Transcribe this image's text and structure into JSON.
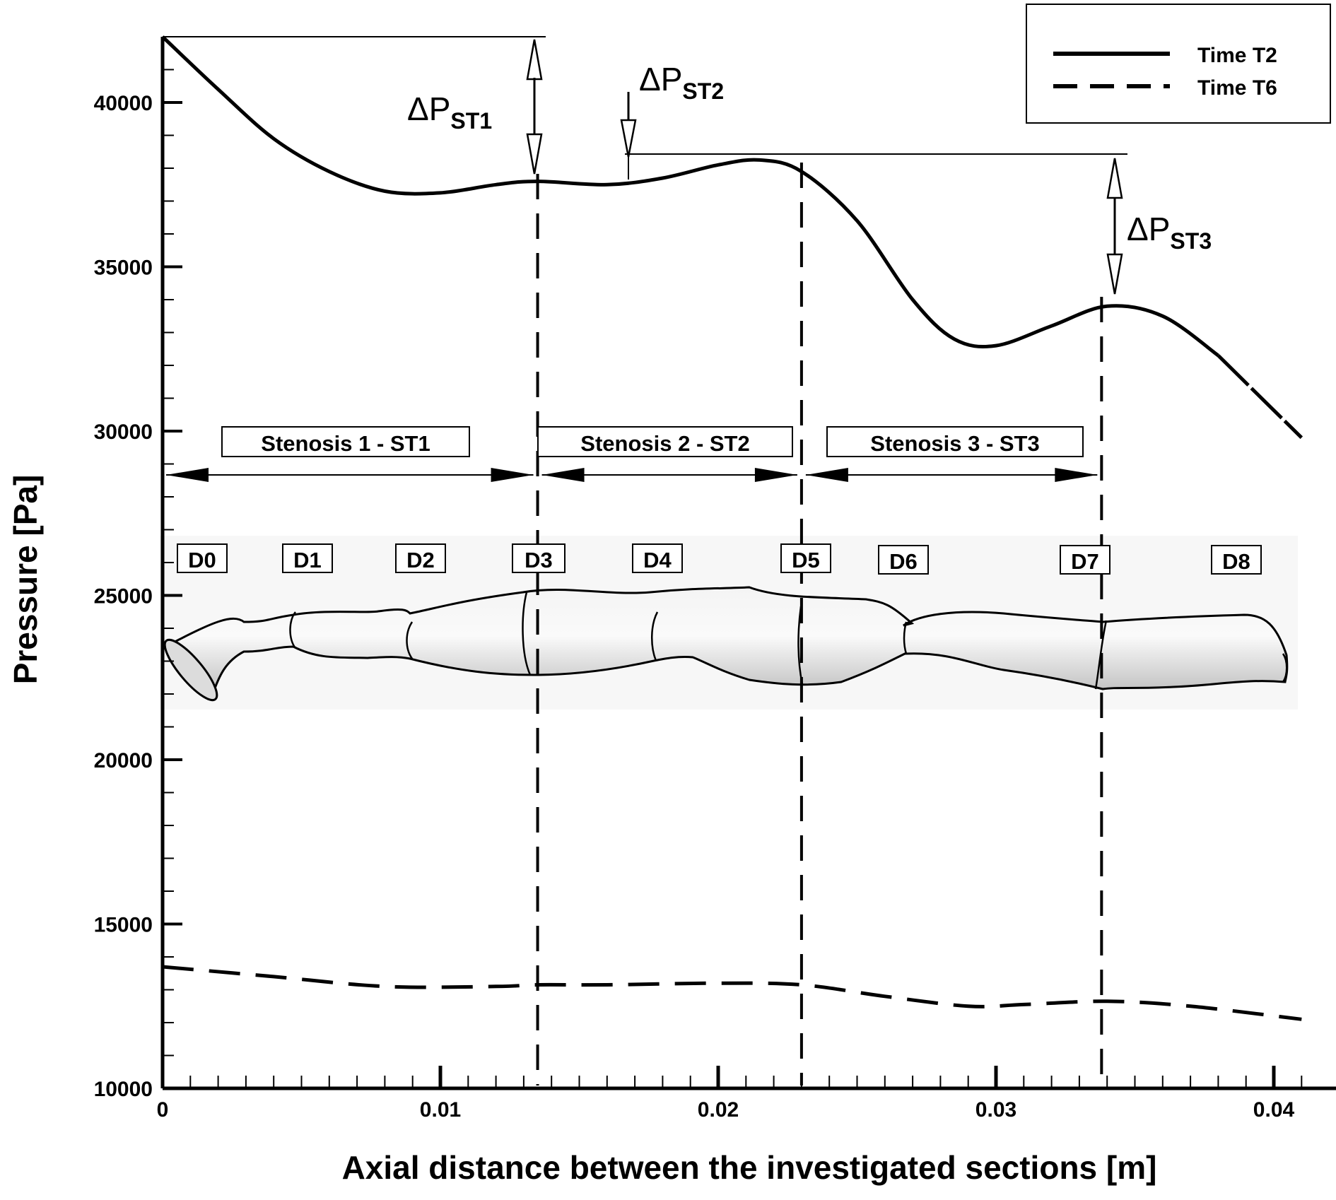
{
  "chart_data": {
    "type": "line",
    "xlabel": "Axial distance between the investigated sections [m]",
    "ylabel": "Pressure [Pa]",
    "xlim": [
      0,
      0.042
    ],
    "ylim": [
      10000,
      42000
    ],
    "x_ticks": [
      "0",
      "0.01",
      "0.02",
      "0.03",
      "0.04"
    ],
    "y_ticks": [
      "10000",
      "15000",
      "20000",
      "25000",
      "30000",
      "35000",
      "40000"
    ],
    "legend_position": "top-right",
    "series": [
      {
        "name": "Time T2",
        "style": "solid",
        "x": [
          0,
          0.002,
          0.004,
          0.006,
          0.008,
          0.01,
          0.012,
          0.0135,
          0.016,
          0.018,
          0.02,
          0.0215,
          0.023,
          0.025,
          0.027,
          0.0285,
          0.03,
          0.032,
          0.034,
          0.036,
          0.038,
          0.041
        ],
        "y": [
          42000,
          40400,
          38900,
          37900,
          37300,
          37250,
          37500,
          37600,
          37500,
          37700,
          38100,
          38250,
          37900,
          36400,
          34000,
          32800,
          32600,
          33200,
          33800,
          33500,
          32300,
          29800
        ]
      },
      {
        "name": "Time T6",
        "style": "dashed",
        "x": [
          0,
          0.004,
          0.008,
          0.012,
          0.0135,
          0.016,
          0.02,
          0.023,
          0.026,
          0.029,
          0.031,
          0.034,
          0.037,
          0.041
        ],
        "y": [
          13700,
          13400,
          13100,
          13100,
          13150,
          13150,
          13200,
          13150,
          12800,
          12500,
          12550,
          12650,
          12500,
          12100
        ]
      }
    ],
    "vertical_markers_x": [
      0.0135,
      0.023,
      0.0338
    ],
    "stenosis_regions": [
      {
        "label": "Stenosis 1 - ST1",
        "x_start": 0,
        "x_end": 0.0135
      },
      {
        "label": "Stenosis 2 - ST2",
        "x_start": 0.0135,
        "x_end": 0.023
      },
      {
        "label": "Stenosis 3 - ST3",
        "x_start": 0.023,
        "x_end": 0.0338
      }
    ],
    "section_labels": [
      "D0",
      "D1",
      "D2",
      "D3",
      "D4",
      "D5",
      "D6",
      "D7",
      "D8"
    ],
    "pressure_drops": [
      {
        "symbol": "ΔP",
        "subscript": "ST1"
      },
      {
        "symbol": "ΔP",
        "subscript": "ST2"
      },
      {
        "symbol": "ΔP",
        "subscript": "ST3"
      }
    ],
    "grid": false
  },
  "colors": {
    "line": "#000000",
    "vessel_fill": "#e4e4e4",
    "vessel_background": "#f7f7f7"
  }
}
